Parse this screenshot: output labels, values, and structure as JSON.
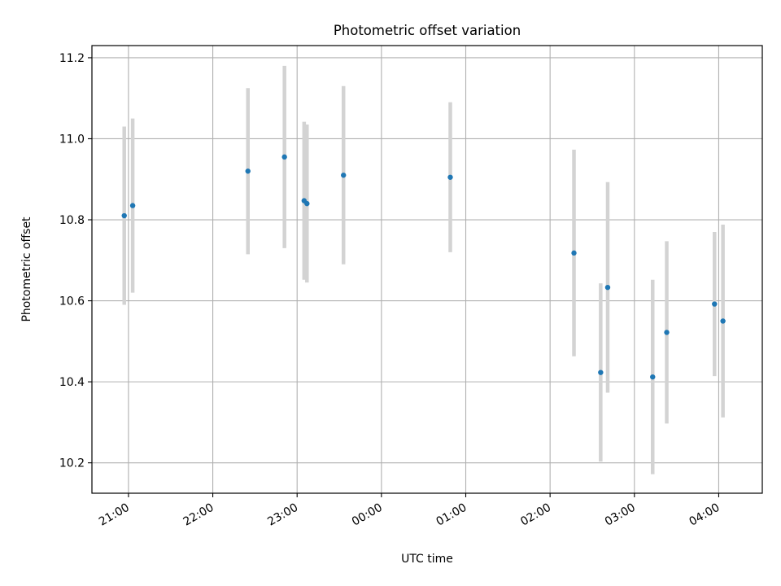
{
  "chart_data": {
    "type": "scatter",
    "title": "Photometric offset variation",
    "xlabel": "UTC time",
    "ylabel": "Photometric offset",
    "x_axis_kind": "time",
    "x_tick_labels": [
      "21:00",
      "22:00",
      "23:00",
      "00:00",
      "01:00",
      "02:00",
      "03:00",
      "04:00"
    ],
    "xlim": [
      "20:34",
      "04:31"
    ],
    "ylim": [
      10.125,
      11.23
    ],
    "y_ticks": [
      10.2,
      10.4,
      10.6,
      10.8,
      11.0,
      11.2
    ],
    "y_tick_labels": [
      "10.2",
      "10.4",
      "10.6",
      "10.8",
      "11.0",
      "11.2"
    ],
    "grid": true,
    "marker_color": "#1f77b4",
    "errorbar_color": "#d3d3d3",
    "points": [
      {
        "time": "20:57",
        "y": 10.81,
        "err": 0.22
      },
      {
        "time": "21:03",
        "y": 10.835,
        "err": 0.215
      },
      {
        "time": "22:25",
        "y": 10.92,
        "err": 0.205
      },
      {
        "time": "22:51",
        "y": 10.955,
        "err": 0.225
      },
      {
        "time": "23:05",
        "y": 10.847,
        "err": 0.195
      },
      {
        "time": "23:07",
        "y": 10.84,
        "err": 0.195
      },
      {
        "time": "23:33",
        "y": 10.91,
        "err": 0.22
      },
      {
        "time": "00:49",
        "y": 10.905,
        "err": 0.185
      },
      {
        "time": "02:17",
        "y": 10.718,
        "err": 0.255
      },
      {
        "time": "02:36",
        "y": 10.423,
        "err": 0.22
      },
      {
        "time": "02:41",
        "y": 10.633,
        "err": 0.26
      },
      {
        "time": "03:13",
        "y": 10.412,
        "err": 0.24
      },
      {
        "time": "03:23",
        "y": 10.522,
        "err": 0.225
      },
      {
        "time": "03:57",
        "y": 10.592,
        "err": 0.178
      },
      {
        "time": "04:03",
        "y": 10.55,
        "err": 0.238
      }
    ]
  }
}
